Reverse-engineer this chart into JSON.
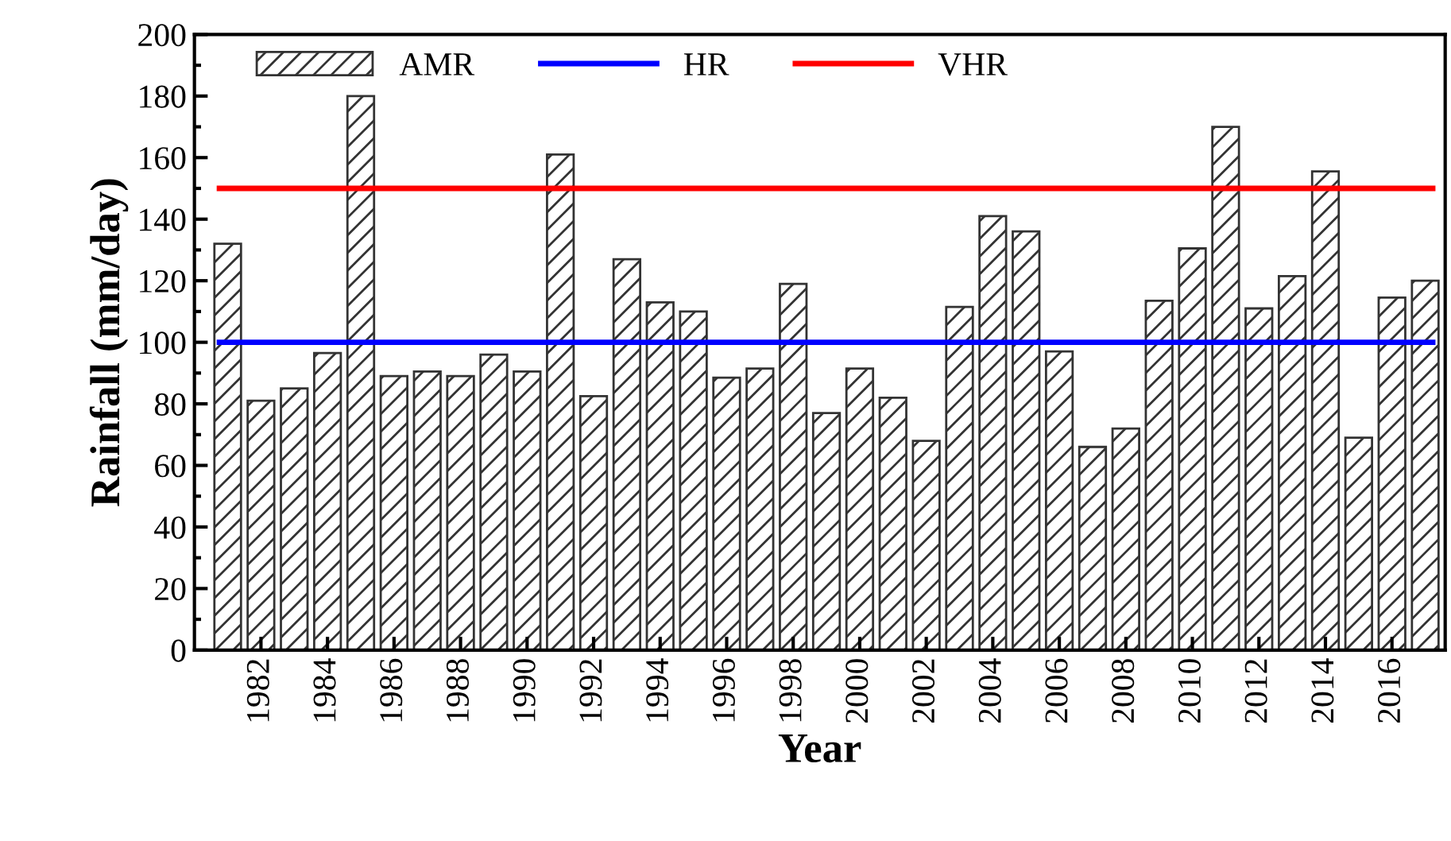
{
  "chart_data": {
    "type": "bar",
    "xlabel": "Year",
    "ylabel": "Rainfall (mm/day)",
    "x": [
      1981,
      1982,
      1983,
      1984,
      1985,
      1986,
      1987,
      1988,
      1989,
      1990,
      1991,
      1992,
      1993,
      1994,
      1995,
      1996,
      1997,
      1998,
      1999,
      2000,
      2001,
      2002,
      2003,
      2004,
      2005,
      2006,
      2007,
      2008,
      2009,
      2010,
      2011,
      2012,
      2013,
      2014,
      2015,
      2016,
      2017
    ],
    "series": [
      {
        "name": "AMR",
        "color": "#333333",
        "values": [
          132,
          81,
          85,
          96.5,
          180,
          89,
          90.5,
          89,
          96,
          90.5,
          161,
          82.5,
          127,
          113,
          110,
          88.5,
          91.5,
          119,
          77,
          91.5,
          82,
          68,
          111.5,
          141,
          136,
          97,
          66,
          72,
          113.5,
          130.5,
          170,
          111,
          121.5,
          155.5,
          69,
          114.5,
          120
        ]
      }
    ],
    "ref_lines": [
      {
        "axis": "y",
        "value": 100,
        "label": "HR",
        "color": "#0000ff"
      },
      {
        "axis": "y",
        "value": 150,
        "label": "VHR",
        "color": "#ff0000"
      }
    ],
    "xlim": [
      1980,
      2017.6
    ],
    "xticks": [
      1982,
      1984,
      1986,
      1988,
      1990,
      1992,
      1994,
      1996,
      1998,
      2000,
      2002,
      2004,
      2006,
      2008,
      2010,
      2012,
      2014,
      2016
    ],
    "ylim": [
      0,
      200
    ],
    "yticks": [
      0,
      20,
      40,
      60,
      80,
      100,
      120,
      140,
      160,
      180,
      200
    ],
    "grid": false,
    "legend": "top"
  }
}
